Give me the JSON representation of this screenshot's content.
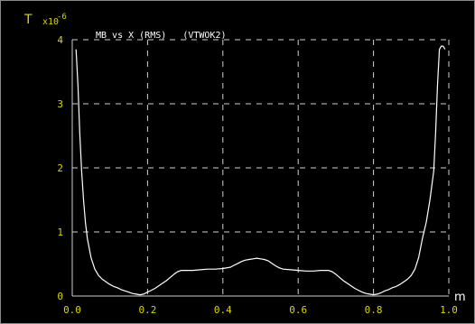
{
  "colors": {
    "background": "#000000",
    "axis_text": "#d8d800",
    "title_text": "#ffffff",
    "grid": "#d0d0d0",
    "curve": "#ffffff",
    "frame": "#8a8a8a"
  },
  "chart_data": {
    "type": "line",
    "title": "MB vs X (RMS)   (VTWOK2)",
    "ylabel": "T",
    "yscale_label": "x10",
    "yscale_exp": "-6",
    "xlabel": "m",
    "xlim": [
      0.0,
      1.0
    ],
    "ylim": [
      0,
      4
    ],
    "grid": true,
    "xticks": [
      "0.0",
      "0.2",
      "0.4",
      "0.6",
      "0.8",
      "1.0"
    ],
    "yticks": [
      "0",
      "1",
      "2",
      "3",
      "4"
    ],
    "series": [
      {
        "x": [
          0.01,
          0.015,
          0.02,
          0.025,
          0.03,
          0.035,
          0.04,
          0.05,
          0.06,
          0.07,
          0.08,
          0.09,
          0.1,
          0.11,
          0.12,
          0.13,
          0.14,
          0.15,
          0.16,
          0.17,
          0.18,
          0.19,
          0.2,
          0.21,
          0.22,
          0.23,
          0.24,
          0.25,
          0.26,
          0.27,
          0.28,
          0.29,
          0.3,
          0.32,
          0.34,
          0.36,
          0.38,
          0.4,
          0.42,
          0.43,
          0.44,
          0.45,
          0.46,
          0.47,
          0.48,
          0.49,
          0.5,
          0.51,
          0.52,
          0.53,
          0.54,
          0.55,
          0.56,
          0.58,
          0.6,
          0.62,
          0.64,
          0.66,
          0.68,
          0.69,
          0.7,
          0.71,
          0.72,
          0.73,
          0.74,
          0.75,
          0.76,
          0.77,
          0.78,
          0.79,
          0.8,
          0.81,
          0.82,
          0.83,
          0.84,
          0.85,
          0.86,
          0.87,
          0.88,
          0.89,
          0.9,
          0.91,
          0.92,
          0.93,
          0.94,
          0.95,
          0.96,
          0.965,
          0.97,
          0.975,
          0.98,
          0.985,
          0.99
        ],
        "y": [
          3.85,
          3.3,
          2.55,
          1.95,
          1.5,
          1.15,
          0.9,
          0.6,
          0.42,
          0.32,
          0.26,
          0.22,
          0.18,
          0.15,
          0.13,
          0.1,
          0.08,
          0.06,
          0.04,
          0.03,
          0.02,
          0.03,
          0.06,
          0.09,
          0.12,
          0.16,
          0.2,
          0.24,
          0.29,
          0.34,
          0.38,
          0.4,
          0.4,
          0.4,
          0.41,
          0.42,
          0.42,
          0.43,
          0.45,
          0.48,
          0.51,
          0.54,
          0.56,
          0.57,
          0.58,
          0.59,
          0.58,
          0.57,
          0.55,
          0.51,
          0.47,
          0.44,
          0.42,
          0.41,
          0.4,
          0.39,
          0.39,
          0.4,
          0.4,
          0.38,
          0.34,
          0.29,
          0.24,
          0.2,
          0.16,
          0.12,
          0.09,
          0.06,
          0.04,
          0.03,
          0.02,
          0.03,
          0.05,
          0.08,
          0.1,
          0.13,
          0.15,
          0.18,
          0.22,
          0.26,
          0.32,
          0.42,
          0.6,
          0.9,
          1.15,
          1.5,
          1.95,
          2.55,
          3.3,
          3.85,
          3.9,
          3.9,
          3.85
        ]
      }
    ]
  }
}
